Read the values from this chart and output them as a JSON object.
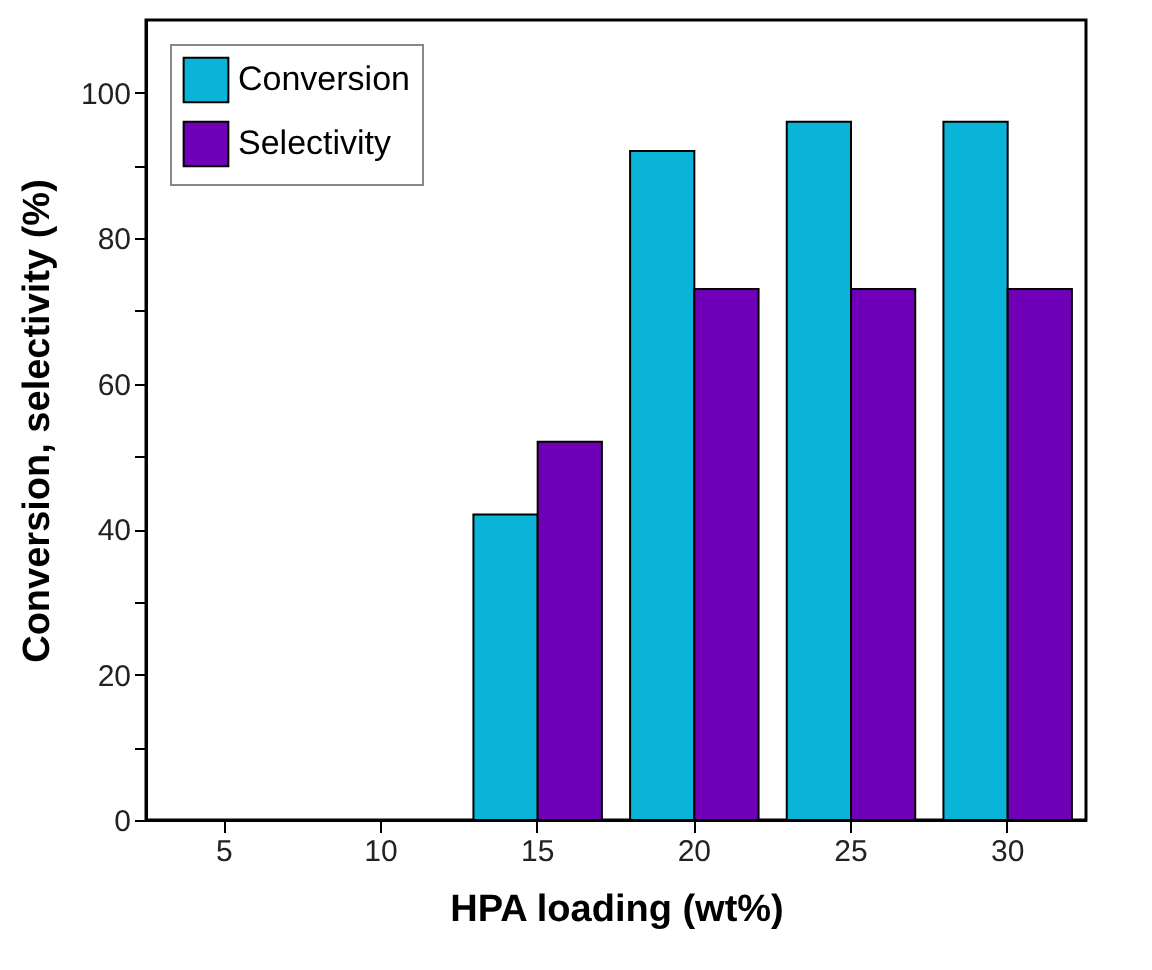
{
  "chart_data": {
    "type": "bar",
    "xlabel": "HPA loading (wt%)",
    "ylabel": "Conversion, selectivity (%)",
    "categories": [
      "5",
      "10",
      "15",
      "20",
      "25",
      "30"
    ],
    "series": [
      {
        "name": "Conversion",
        "color": "#0ab4d8",
        "values": [
          0,
          0,
          42,
          92,
          96,
          96
        ]
      },
      {
        "name": "Selectivity",
        "color": "#7000b8",
        "values": [
          0,
          0,
          52,
          73,
          73,
          73
        ]
      }
    ],
    "ylim": [
      0,
      110
    ],
    "yticks": [
      0,
      {
        "value": 10,
        "label": null
      },
      20,
      {
        "value": 30,
        "label": null
      },
      40,
      {
        "value": 50,
        "label": null
      },
      60,
      {
        "value": 70,
        "label": null
      },
      80,
      {
        "value": 90,
        "label": null
      },
      100
    ],
    "grid": false,
    "legend": "top left"
  }
}
